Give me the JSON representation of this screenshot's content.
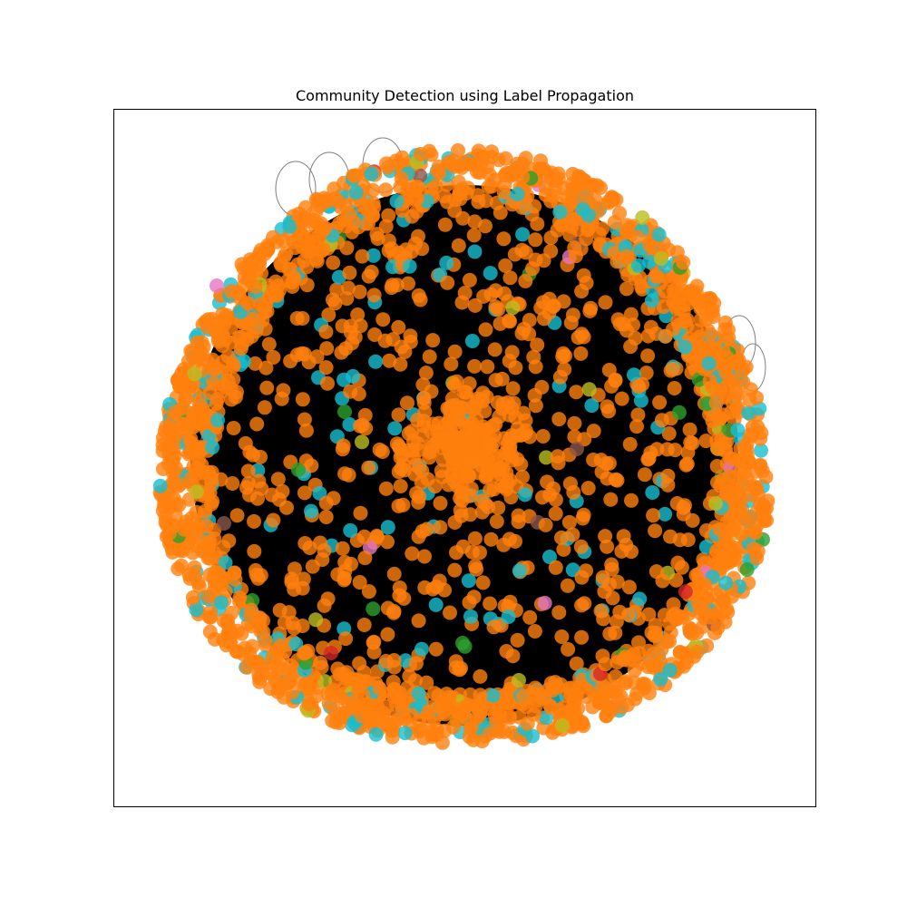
{
  "title": "Community Detection using Label Propagation",
  "chart_data": {
    "type": "network",
    "title": "Community Detection using Label Propagation",
    "axes_visible": false,
    "ticks_visible": false,
    "edge_color": "#000000",
    "self_loop_color": "#808080",
    "node_alpha": 0.8,
    "communities": [
      {
        "color": "#ff7f0e",
        "share": 0.86
      },
      {
        "color": "#17becf",
        "share": 0.11
      },
      {
        "color": "#2ca02c",
        "share": 0.01
      },
      {
        "color": "#bcbd22",
        "share": 0.01
      },
      {
        "color": "#8c564b",
        "share": 0.005
      },
      {
        "color": "#e377c2",
        "share": 0.003
      },
      {
        "color": "#d62728",
        "share": 0.002
      }
    ],
    "layout": "spring",
    "dense_core": true,
    "dense_ring": true
  }
}
